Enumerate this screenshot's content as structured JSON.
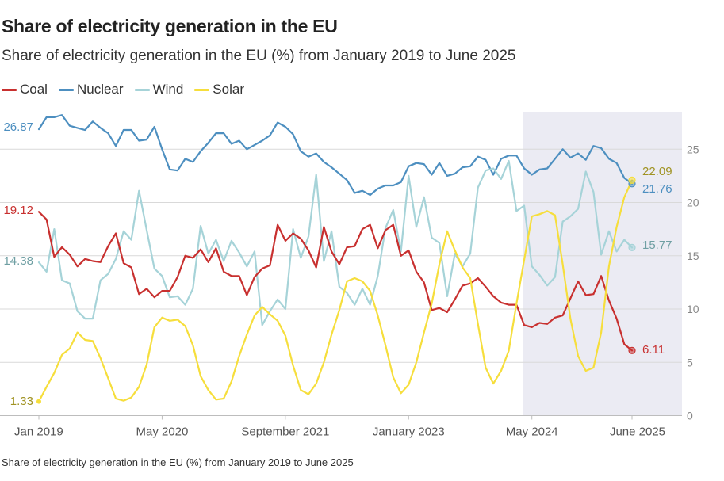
{
  "header": {
    "title": "Share of electricity generation in the EU",
    "subtitle": "Share of electricity generation in the EU (%) from January 2019 to June 2025"
  },
  "legend": [
    {
      "label": "Coal",
      "color": "#c8302f"
    },
    {
      "label": "Nuclear",
      "color": "#4d8fc0"
    },
    {
      "label": "Wind",
      "color": "#a6d3d8"
    },
    {
      "label": "Solar",
      "color": "#f6de3c"
    }
  ],
  "footer": {
    "source": "Share of electricity generation in the EU (%) from January 2019 to June 2025"
  },
  "chart_data": {
    "type": "line",
    "title": "Share of electricity generation in the EU",
    "xlabel": "",
    "ylabel": "%",
    "ylim": [
      0,
      28
    ],
    "yticks": [
      "0",
      "5",
      "10",
      "15",
      "20",
      "25"
    ],
    "x_start": "Jan 2019",
    "x_end": "June 2025",
    "n_points": 78,
    "xtick_labels": [
      {
        "label": "Jan 2019",
        "index": 0
      },
      {
        "label": "May 2020",
        "index": 16
      },
      {
        "label": "September 2021",
        "index": 32
      },
      {
        "label": "January 2023",
        "index": 48
      },
      {
        "label": "May 2024",
        "index": 64
      },
      {
        "label": "June 2025",
        "index": 77
      }
    ],
    "shaded_region": {
      "start_index": 63,
      "end_index": 77
    },
    "series": [
      {
        "name": "Nuclear",
        "color": "#4d8fc0",
        "start_label": "26.87",
        "end_label": "21.76",
        "values": [
          26.87,
          28.0,
          28.0,
          28.2,
          27.2,
          27.0,
          26.8,
          27.6,
          27.0,
          26.5,
          25.3,
          26.8,
          26.8,
          25.8,
          25.9,
          27.1,
          25.0,
          23.1,
          23.0,
          24.1,
          23.8,
          24.8,
          25.6,
          26.5,
          26.5,
          25.5,
          25.8,
          25.0,
          25.4,
          25.8,
          26.3,
          27.5,
          27.1,
          26.4,
          24.8,
          24.3,
          24.6,
          23.8,
          23.3,
          22.7,
          22.1,
          20.9,
          21.1,
          20.7,
          21.3,
          21.6,
          21.6,
          21.9,
          23.4,
          23.7,
          23.6,
          22.6,
          23.7,
          22.5,
          22.7,
          23.3,
          23.4,
          24.3,
          24.0,
          22.6,
          24.1,
          24.4,
          24.4,
          23.2,
          22.6,
          23.1,
          23.2,
          24.1,
          25.0,
          24.2,
          24.6,
          24.0,
          25.3,
          25.1,
          24.1,
          23.7,
          22.3,
          21.76
        ]
      },
      {
        "name": "Wind",
        "color": "#a6d3d8",
        "start_label": "14.38",
        "end_label": "15.77",
        "values": [
          14.38,
          13.5,
          17.5,
          12.7,
          12.4,
          9.8,
          9.1,
          9.1,
          12.7,
          13.3,
          14.7,
          17.3,
          16.5,
          21.1,
          17.4,
          13.8,
          13.1,
          11.1,
          11.2,
          10.4,
          11.9,
          17.8,
          15.2,
          16.5,
          14.5,
          16.4,
          15.3,
          14.0,
          15.4,
          8.5,
          9.8,
          10.9,
          10.0,
          17.5,
          14.8,
          16.8,
          22.6,
          14.5,
          17.3,
          12.1,
          11.5,
          10.4,
          11.9,
          10.4,
          13.1,
          17.6,
          19.3,
          15.4,
          22.5,
          17.7,
          20.5,
          16.7,
          16.2,
          11.2,
          15.2,
          14.0,
          15.2,
          21.4,
          23.0,
          23.2,
          22.2,
          23.9,
          19.2,
          19.7,
          14.0,
          13.2,
          12.2,
          13.0,
          18.2,
          18.7,
          19.4,
          22.9,
          21.0,
          15.1,
          17.3,
          15.4,
          16.5,
          15.77
        ]
      },
      {
        "name": "Coal",
        "color": "#c8302f",
        "start_label": "19.12",
        "end_label": "6.11",
        "values": [
          19.12,
          18.4,
          14.9,
          15.8,
          15.1,
          14.0,
          14.7,
          14.5,
          14.4,
          15.9,
          17.1,
          14.3,
          13.9,
          11.4,
          11.9,
          11.1,
          11.7,
          11.7,
          13.0,
          15.0,
          14.8,
          15.6,
          14.4,
          15.7,
          13.5,
          13.1,
          13.1,
          11.3,
          13.0,
          13.8,
          14.1,
          17.9,
          16.4,
          17.1,
          16.6,
          15.5,
          13.9,
          17.7,
          15.4,
          14.2,
          15.8,
          15.9,
          17.5,
          17.9,
          15.7,
          17.4,
          17.9,
          15.0,
          15.5,
          13.5,
          12.5,
          9.9,
          10.1,
          9.7,
          10.9,
          12.2,
          12.4,
          12.9,
          12.1,
          11.2,
          10.6,
          10.4,
          10.4,
          8.5,
          8.3,
          8.7,
          8.6,
          9.2,
          9.4,
          11.0,
          12.6,
          11.3,
          11.4,
          13.1,
          10.8,
          9.1,
          6.7,
          6.11
        ]
      },
      {
        "name": "Solar",
        "color": "#f6de3c",
        "start_label": "1.33",
        "end_label": "22.09",
        "values": [
          1.33,
          2.7,
          4.0,
          5.7,
          6.3,
          7.8,
          7.1,
          7.0,
          5.4,
          3.5,
          1.6,
          1.4,
          1.7,
          2.7,
          4.8,
          8.3,
          9.2,
          8.9,
          9.0,
          8.4,
          6.6,
          3.7,
          2.4,
          1.5,
          1.6,
          3.2,
          5.6,
          7.6,
          9.4,
          10.2,
          9.5,
          8.9,
          7.5,
          4.7,
          2.4,
          2.0,
          3.0,
          5.0,
          7.6,
          9.9,
          12.6,
          12.9,
          12.6,
          11.7,
          9.4,
          6.6,
          3.6,
          2.1,
          2.9,
          5.0,
          7.8,
          10.5,
          14.2,
          17.3,
          15.5,
          13.9,
          12.9,
          8.6,
          4.5,
          3.0,
          4.2,
          6.1,
          10.5,
          14.6,
          18.7,
          18.9,
          19.2,
          18.8,
          14.2,
          9.1,
          5.6,
          4.2,
          4.5,
          7.8,
          14.0,
          17.7,
          20.5,
          22.09
        ]
      }
    ]
  }
}
